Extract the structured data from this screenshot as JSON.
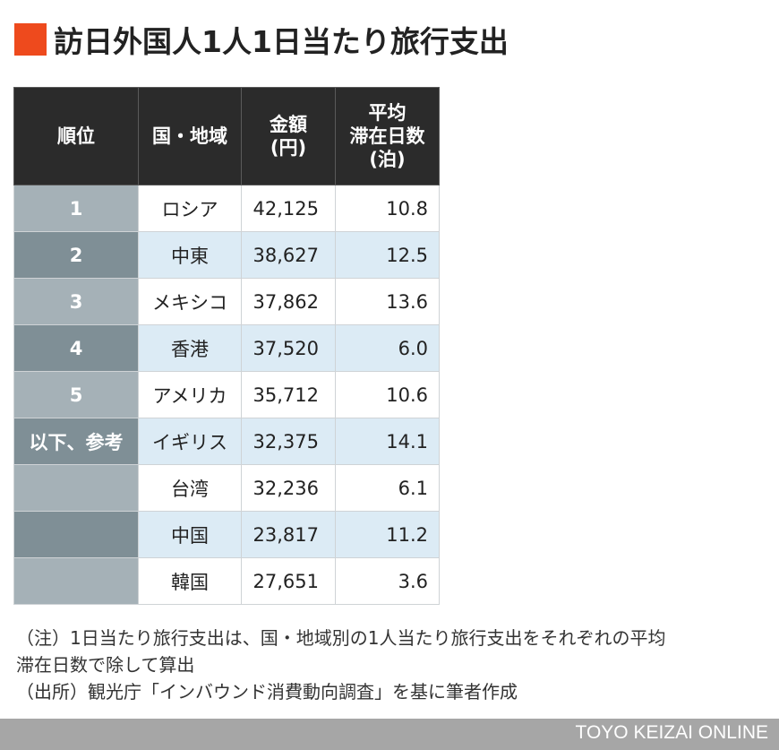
{
  "title": "訪日外国人1人1日当たり旅行支出",
  "colors": {
    "title_mark": "#ee4a1d",
    "header_bg": "#2b2b2b",
    "row_alt_bg": "#dcebf5",
    "rank_odd": "#a5b1b7",
    "rank_even": "#7f8f96",
    "footer_bg": "#a6a6a6"
  },
  "chart_data": {
    "type": "table",
    "columns": [
      "順位",
      "国・地域",
      "金額\n(円)",
      "平均\n滞在日数\n(泊)"
    ],
    "rows": [
      {
        "rank": "1",
        "region": "ロシア",
        "amount": "42,125",
        "days": "10.8"
      },
      {
        "rank": "2",
        "region": "中東",
        "amount": "38,627",
        "days": "12.5"
      },
      {
        "rank": "3",
        "region": "メキシコ",
        "amount": "37,862",
        "days": "13.6"
      },
      {
        "rank": "4",
        "region": "香港",
        "amount": "37,520",
        "days": "6.0"
      },
      {
        "rank": "5",
        "region": "アメリカ",
        "amount": "35,712",
        "days": "10.6"
      },
      {
        "rank": "以下、参考",
        "region": "イギリス",
        "amount": "32,375",
        "days": "14.1"
      },
      {
        "rank": "",
        "region": "台湾",
        "amount": "32,236",
        "days": "6.1"
      },
      {
        "rank": "",
        "region": "中国",
        "amount": "23,817",
        "days": "11.2"
      },
      {
        "rank": "",
        "region": "韓国",
        "amount": "27,651",
        "days": "3.6"
      }
    ]
  },
  "notes": {
    "line1": "（注）1日当たり旅行支出は、国・地域別の1人当たり旅行支出をそれぞれの平均",
    "line2": "滞在日数で除して算出",
    "line3": "（出所）観光庁「インバウンド消費動向調査」を基に筆者作成"
  },
  "footer": {
    "brand": "TOYO KEIZAI ONLINE"
  }
}
